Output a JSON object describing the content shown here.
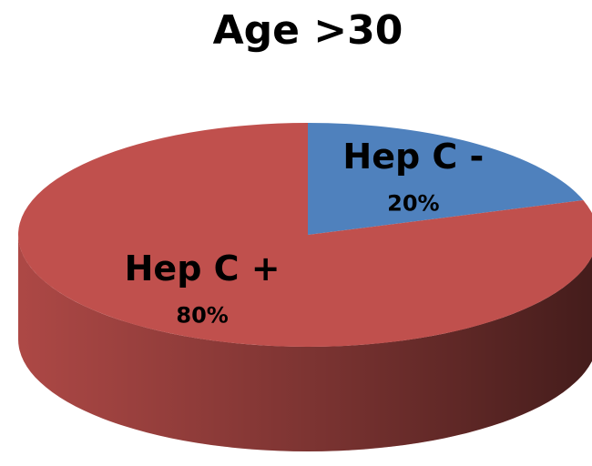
{
  "chart_data": {
    "type": "pie",
    "title": "Age >30",
    "categories": [
      "Hep C -",
      "Hep C +"
    ],
    "values": [
      20,
      80
    ],
    "value_labels": [
      "20%",
      "80%"
    ],
    "colors": [
      "#4f81bd",
      "#c0504d"
    ]
  }
}
